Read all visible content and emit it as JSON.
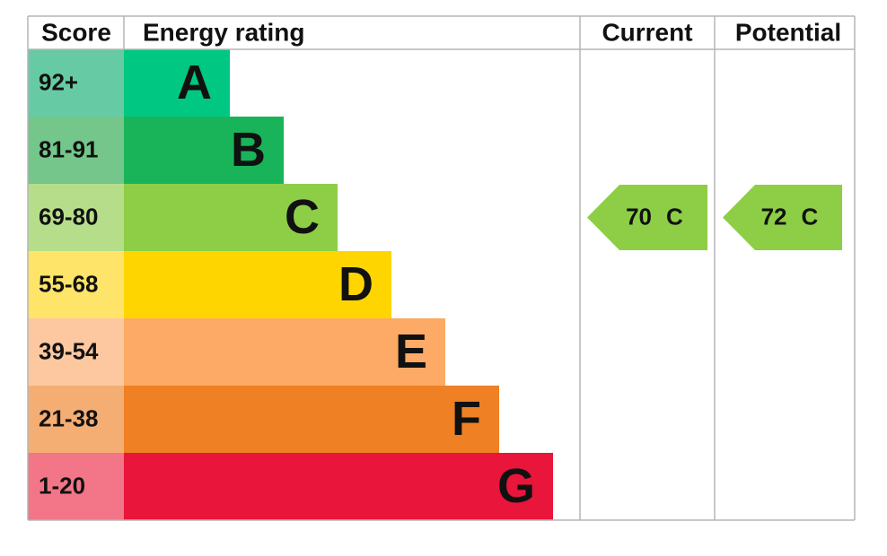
{
  "header": {
    "score": "Score",
    "energy_rating": "Energy rating",
    "current": "Current",
    "potential": "Potential"
  },
  "bands": [
    {
      "score": "92+",
      "letter": "A",
      "color": "#00c781",
      "score_color": "#66cba4"
    },
    {
      "score": "81-91",
      "letter": "B",
      "color": "#19b459",
      "score_color": "#74c68a"
    },
    {
      "score": "69-80",
      "letter": "C",
      "color": "#8dce46",
      "score_color": "#b6de8a"
    },
    {
      "score": "55-68",
      "letter": "D",
      "color": "#ffd500",
      "score_color": "#ffe46a"
    },
    {
      "score": "39-54",
      "letter": "E",
      "color": "#fcaa65",
      "score_color": "#fdc8a0"
    },
    {
      "score": "21-38",
      "letter": "F",
      "color": "#ef8023",
      "score_color": "#f4ae74"
    },
    {
      "score": "1-20",
      "letter": "G",
      "color": "#e9153b",
      "score_color": "#f27588"
    }
  ],
  "current": {
    "value": 70,
    "letter": "C"
  },
  "potential": {
    "value": 72,
    "letter": "C"
  }
}
